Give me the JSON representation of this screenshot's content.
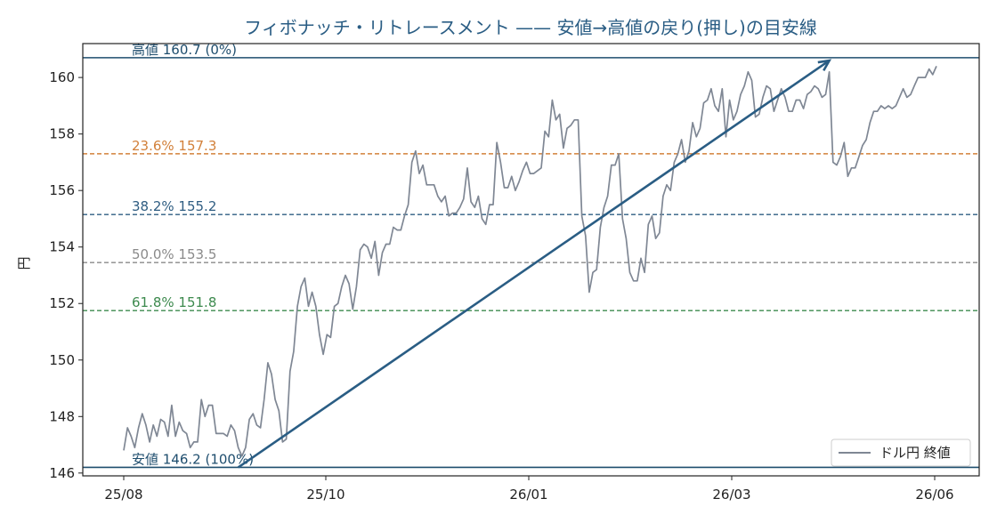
{
  "chart_data": {
    "type": "line",
    "title": "フィボナッチ・リトレースメント —— 安値→高値の戻り(押し)の目安線",
    "ylabel": "円",
    "xlabel": "",
    "ylim": [
      145.9,
      161.2
    ],
    "x_tick_labels": [
      "25/08",
      "25/10",
      "26/01",
      "26/03",
      "26/06"
    ],
    "y_tick_labels": [
      "146",
      "148",
      "150",
      "152",
      "154",
      "156",
      "158",
      "160"
    ],
    "y_ticks": [
      146,
      148,
      150,
      152,
      154,
      156,
      158,
      160
    ],
    "series": [
      {
        "name": "ドル円 終値",
        "color": "#7f8794",
        "values": [
          146.8,
          147.6,
          147.3,
          146.9,
          147.6,
          148.1,
          147.7,
          147.1,
          147.7,
          147.3,
          147.9,
          147.8,
          147.3,
          148.4,
          147.3,
          147.8,
          147.5,
          147.4,
          146.9,
          147.1,
          147.1,
          148.6,
          148.0,
          148.4,
          148.4,
          147.4,
          147.4,
          147.4,
          147.3,
          147.7,
          147.5,
          146.9,
          146.6,
          146.9,
          147.9,
          148.1,
          147.7,
          147.6,
          148.6,
          149.9,
          149.5,
          148.6,
          148.2,
          147.1,
          147.2,
          149.6,
          150.3,
          151.9,
          152.6,
          152.9,
          151.9,
          152.4,
          151.9,
          150.9,
          150.2,
          150.9,
          150.8,
          151.9,
          152.0,
          152.6,
          153.0,
          152.7,
          151.8,
          152.6,
          153.9,
          154.1,
          154.0,
          153.6,
          154.2,
          153.0,
          153.8,
          154.1,
          154.1,
          154.7,
          154.6,
          154.6,
          155.1,
          155.5,
          157.0,
          157.4,
          156.6,
          156.9,
          156.2,
          156.2,
          156.2,
          155.8,
          155.6,
          155.8,
          155.1,
          155.2,
          155.2,
          155.4,
          155.7,
          156.8,
          155.6,
          155.4,
          155.8,
          155.0,
          154.8,
          155.5,
          155.5,
          157.7,
          157.0,
          156.1,
          156.1,
          156.5,
          156.0,
          156.3,
          156.7,
          157.0,
          156.6,
          156.6,
          156.7,
          156.8,
          158.1,
          157.9,
          159.2,
          158.5,
          158.7,
          157.5,
          158.2,
          158.3,
          158.5,
          158.5,
          155.1,
          154.4,
          152.4,
          153.1,
          153.2,
          154.7,
          155.4,
          155.8,
          156.9,
          156.9,
          157.3,
          155.0,
          154.3,
          153.1,
          152.8,
          152.8,
          153.6,
          153.1,
          154.8,
          155.1,
          154.3,
          154.5,
          155.8,
          156.2,
          156.0,
          157.0,
          157.3,
          157.8,
          157.0,
          157.4,
          158.4,
          157.9,
          158.2,
          159.1,
          159.2,
          159.6,
          159.0,
          158.8,
          159.6,
          157.9,
          159.2,
          158.5,
          158.8,
          159.4,
          159.7,
          160.2,
          159.9,
          158.6,
          158.7,
          159.3,
          159.7,
          159.6,
          158.8,
          159.2,
          159.6,
          159.3,
          158.8,
          158.8,
          159.2,
          159.2,
          158.9,
          159.4,
          159.5,
          159.7,
          159.6,
          159.3,
          159.4,
          160.2,
          157.0,
          156.9,
          157.2,
          157.7,
          156.5,
          156.8,
          156.8,
          157.2,
          157.6,
          157.8,
          158.4,
          158.8,
          158.8,
          159.0,
          158.9,
          159.0,
          158.9,
          159.0,
          159.3,
          159.6,
          159.3,
          159.4,
          159.7,
          160.0,
          160.0,
          160.0,
          160.3,
          160.1,
          160.4
        ]
      }
    ],
    "levels": [
      {
        "label": "高値 160.7 (0%)",
        "value": 160.7,
        "style": "solid",
        "color": "#1f4e6e"
      },
      {
        "label": "23.6%  157.3",
        "value": 157.3,
        "style": "dashed",
        "color": "#d2803a"
      },
      {
        "label": "38.2%  155.2",
        "value": 155.15,
        "style": "dashed",
        "color": "#2f5d82"
      },
      {
        "label": "50.0%  153.5",
        "value": 153.45,
        "style": "dashed",
        "color": "#8a8a8a"
      },
      {
        "label": "61.8%  151.8",
        "value": 151.75,
        "style": "dashed",
        "color": "#3d8a4e"
      },
      {
        "label": "安値 146.2 (100%)",
        "value": 146.2,
        "style": "solid",
        "color": "#1f4e6e"
      }
    ],
    "arrow": {
      "from_index": 31,
      "from_value": 146.2,
      "to_index": 191,
      "to_value": 160.6,
      "color": "#2a5d84"
    },
    "legend": {
      "placement": "bottom-right"
    },
    "grid": false
  }
}
